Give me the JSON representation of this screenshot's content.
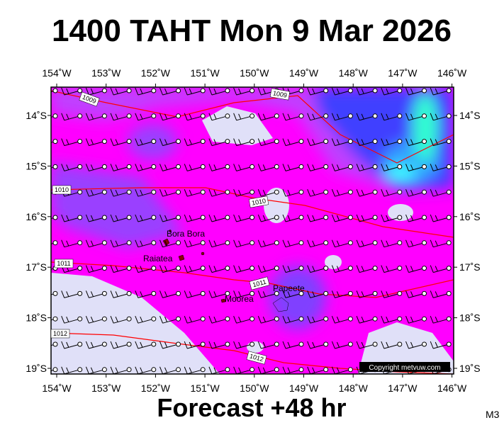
{
  "title": "1400 TAHT Mon 9 Mar 2026",
  "lon_labels": [
    "154˚W",
    "153˚W",
    "152˚W",
    "151˚W",
    "150˚W",
    "149˚W",
    "148˚W",
    "147˚W",
    "146˚W"
  ],
  "lat_labels": [
    "14˚S",
    "15˚S",
    "16˚S",
    "17˚S",
    "18˚S",
    "19˚S"
  ],
  "places": [
    "Bora Bora",
    "Raiatea",
    "Moorea",
    "Papeete"
  ],
  "isobars": [
    "1009",
    "1009",
    "1010",
    "1010",
    "1011",
    "1011",
    "1012",
    "1012"
  ],
  "copyright": "Copyright metvuw.com",
  "footer": "Forecast +48 hr",
  "model": "M3"
}
